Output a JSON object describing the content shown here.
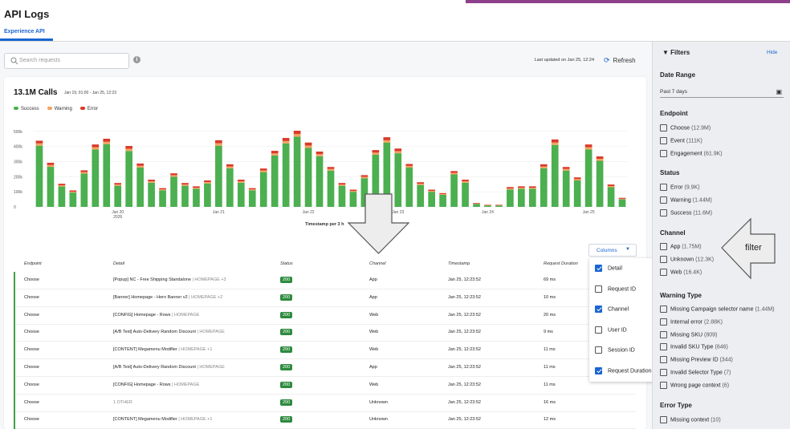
{
  "header": {
    "title": "API Logs",
    "tab": "Experience API"
  },
  "toolbar": {
    "search_placeholder": "Search requests",
    "updated": "Last updated on Jan 25, 12:24",
    "refresh_label": "Refresh"
  },
  "summary": {
    "calls": "13.1M Calls",
    "range": "Jan 19, 01:00 - Jan 25, 12:23",
    "legend": [
      "Success",
      "Warning",
      "Error"
    ]
  },
  "colors": {
    "success": "#4caf50",
    "warning": "#f4a261",
    "error": "#d93a2b",
    "accent": "#1a66d1"
  },
  "chart_data": {
    "type": "bar",
    "stacked": true,
    "title": "",
    "xlabel": "Timestamp per 3 h",
    "ylabel": "",
    "ylim": [
      0,
      520000
    ],
    "y_ticks": [
      "500k",
      "400k",
      "300k",
      "200k",
      "100k",
      "0"
    ],
    "x_tick_labels": [
      {
        "index": 7,
        "label": "Jan 20",
        "sub": "2026"
      },
      {
        "index": 16,
        "label": "Jan 21"
      },
      {
        "index": 24,
        "label": "Jan 22"
      },
      {
        "index": 32,
        "label": "Jan 23"
      },
      {
        "index": 40,
        "label": "Jan 24"
      },
      {
        "index": 49,
        "label": "Jan 25"
      }
    ],
    "series": [
      {
        "name": "Success",
        "values": [
          405000,
          265000,
          135000,
          95000,
          220000,
          380000,
          415000,
          140000,
          370000,
          260000,
          160000,
          110000,
          200000,
          140000,
          120000,
          155000,
          405000,
          255000,
          160000,
          110000,
          230000,
          340000,
          420000,
          465000,
          390000,
          335000,
          240000,
          140000,
          100000,
          190000,
          345000,
          425000,
          355000,
          260000,
          145000,
          100000,
          80000,
          215000,
          160000,
          20000,
          10000,
          10000,
          115000,
          120000,
          120000,
          255000,
          410000,
          240000,
          175000,
          380000,
          305000,
          130000,
          50000
        ],
        "warning": [
          15000,
          12000,
          8000,
          6000,
          10000,
          15000,
          16000,
          8000,
          15000,
          12000,
          9000,
          6000,
          10000,
          8000,
          7000,
          9000,
          16000,
          12000,
          9000,
          6000,
          11000,
          14000,
          16000,
          17000,
          16000,
          14000,
          11000,
          8000,
          6000,
          9000,
          14000,
          16000,
          14000,
          11000,
          8000,
          6000,
          5000,
          10000,
          9000,
          2000,
          1000,
          1000,
          7000,
          7000,
          7000,
          12000,
          16000,
          11000,
          9000,
          15000,
          13000,
          8000,
          4000
        ],
        "error": [
          18000,
          15000,
          10000,
          8000,
          12000,
          18000,
          20000,
          10000,
          18000,
          15000,
          11000,
          8000,
          12000,
          10000,
          9000,
          11000,
          20000,
          15000,
          11000,
          8000,
          13000,
          17000,
          20000,
          22000,
          20000,
          17000,
          13000,
          10000,
          8000,
          11000,
          17000,
          20000,
          17000,
          13000,
          10000,
          8000,
          6000,
          12000,
          11000,
          4000,
          3000,
          3000,
          9000,
          9000,
          9000,
          15000,
          20000,
          13000,
          11000,
          18000,
          16000,
          10000,
          6000
        ]
      }
    ]
  },
  "table": {
    "columns_button": "Columns",
    "headers": [
      "Endpoint",
      "Detail",
      "Status",
      "Channel",
      "Timestamp",
      "Request Duration"
    ],
    "rows": [
      {
        "endpoint": "Choose",
        "detail": "[Popup] NC - Free Shipping Standalone",
        "detail_muted": "| HOMEPAGE +3",
        "status": "200",
        "channel": "App",
        "timestamp": "Jan 25, 12:23:52",
        "duration": "69 ms"
      },
      {
        "endpoint": "Choose",
        "detail": "[Banner] Homepage - Hero Banner v2",
        "detail_muted": "| HOMEPAGE +2",
        "status": "200",
        "channel": "App",
        "timestamp": "Jan 25, 12:23:52",
        "duration": "10 ms"
      },
      {
        "endpoint": "Choose",
        "detail": "[CONFIG] Homepage - Rows",
        "detail_muted": "| HOMEPAGE",
        "status": "200",
        "channel": "Web",
        "timestamp": "Jan 25, 12:23:52",
        "duration": "20 ms"
      },
      {
        "endpoint": "Choose",
        "detail": "[A/B Test] Auto-Delivery Random Discount",
        "detail_muted": "| HOMEPAGE",
        "status": "200",
        "channel": "Web",
        "timestamp": "Jan 25, 12:23:52",
        "duration": "9 ms"
      },
      {
        "endpoint": "Choose",
        "detail": "[CONTENT] Megamenu Modifier",
        "detail_muted": "| HOMEPAGE +1",
        "status": "200",
        "channel": "Web",
        "timestamp": "Jan 25, 12:23:52",
        "duration": "11 ms"
      },
      {
        "endpoint": "Choose",
        "detail": "[A/B Test] Auto-Delivery Random Discount",
        "detail_muted": "| HOMEPAGE",
        "status": "200",
        "channel": "App",
        "timestamp": "Jan 25, 12:23:52",
        "duration": "11 ms"
      },
      {
        "endpoint": "Choose",
        "detail": "[CONFIG] Homepage - Rows",
        "detail_muted": "| HOMEPAGE",
        "status": "200",
        "channel": "Web",
        "timestamp": "Jan 25, 12:23:52",
        "duration": "11 ms"
      },
      {
        "endpoint": "Choose",
        "detail": "",
        "detail_muted": "1 OTHER",
        "status": "200",
        "channel": "Unknown",
        "timestamp": "Jan 25, 12:23:52",
        "duration": "16 ms"
      },
      {
        "endpoint": "Choose",
        "detail": "[CONTENT] Megamenu Modifier",
        "detail_muted": "| HOMEPAGE +1",
        "status": "200",
        "channel": "Unknown",
        "timestamp": "Jan 25, 12:23:52",
        "duration": "12 ms"
      }
    ],
    "column_menu": [
      {
        "label": "Detail",
        "checked": true
      },
      {
        "label": "Request ID",
        "checked": false
      },
      {
        "label": "Channel",
        "checked": true
      },
      {
        "label": "User ID",
        "checked": false
      },
      {
        "label": "Session ID",
        "checked": false
      },
      {
        "label": "Request Duration",
        "checked": true
      }
    ]
  },
  "filters": {
    "title": "Filters",
    "hide": "Hide",
    "date_range": {
      "label": "Date Range",
      "value": "Past 7 days"
    },
    "endpoint": {
      "label": "Endpoint",
      "items": [
        {
          "name": "Choose",
          "count": "(12.9M)"
        },
        {
          "name": "Event",
          "count": "(111K)"
        },
        {
          "name": "Engagement",
          "count": "(61.9K)"
        }
      ]
    },
    "status": {
      "label": "Status",
      "items": [
        {
          "name": "Error",
          "count": "(9.9K)"
        },
        {
          "name": "Warning",
          "count": "(1.44M)"
        },
        {
          "name": "Success",
          "count": "(11.6M)"
        }
      ]
    },
    "channel": {
      "label": "Channel",
      "items": [
        {
          "name": "App",
          "count": "(1.75M)"
        },
        {
          "name": "Unknown",
          "count": "(12.3K)"
        },
        {
          "name": "Web",
          "count": "(16.4K)"
        }
      ]
    },
    "warning_type": {
      "label": "Warning Type",
      "items": [
        {
          "name": "Missing Campaign selector name",
          "count": "(1.44M)"
        },
        {
          "name": "Internal error",
          "count": "(2.88K)"
        },
        {
          "name": "Missing SKU",
          "count": "(809)"
        },
        {
          "name": "Invalid SKU Type",
          "count": "(646)"
        },
        {
          "name": "Missing Preview ID",
          "count": "(344)"
        },
        {
          "name": "Invalid Selector Type",
          "count": "(7)"
        },
        {
          "name": "Wrong page context",
          "count": "(6)"
        }
      ]
    },
    "error_type": {
      "label": "Error Type",
      "items": [
        {
          "name": "Missing context",
          "count": "(10)"
        }
      ]
    }
  },
  "annotation": {
    "filter_label": "filter"
  }
}
